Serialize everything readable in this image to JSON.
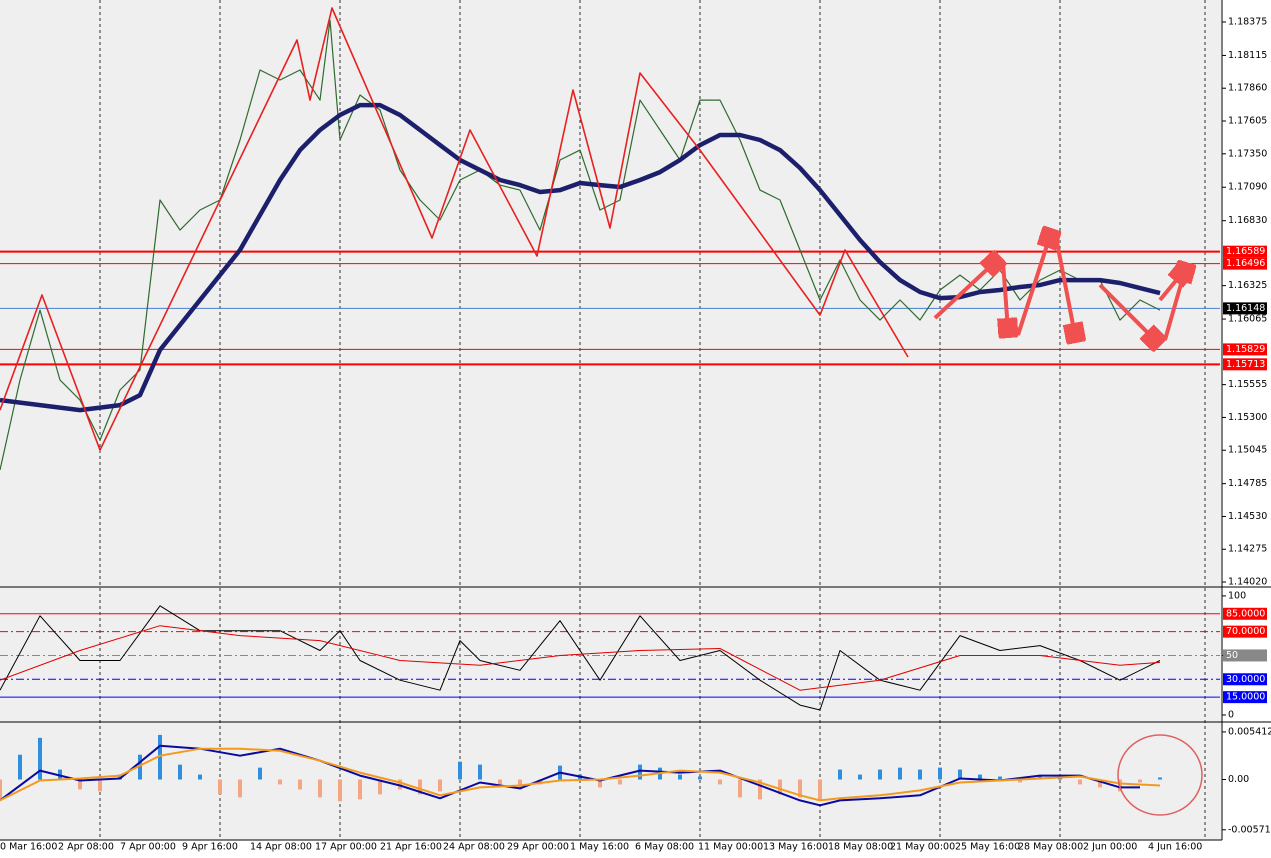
{
  "chart_data": [
    {
      "type": "line",
      "xlim": [
        0,
        244
      ],
      "ylim": [
        1.13997,
        1.18546
      ],
      "yticks": [
        1.18375,
        1.18115,
        {
          "value": 1.1786,
          "label": "1.17860"
        },
        1.17605,
        {
          "value": 1.1735,
          "label": "1.17350"
        },
        {
          "value": 1.1709,
          "label": "1.17090"
        },
        {
          "value": 1.1683,
          "label": "1.16830"
        },
        1.16325,
        1.16065,
        1.15555,
        {
          "value": 1.153,
          "label": "1.15300"
        },
        1.15045,
        1.14785,
        {
          "value": 1.1453,
          "label": "1.14530"
        },
        1.14275,
        {
          "value": 1.1402,
          "label": "1.14020"
        }
      ],
      "levels": [
        {
          "value": 1.16589,
          "color": "#ff0000",
          "width": 2
        },
        {
          "value": 1.16496,
          "color": "#ff0000",
          "width": 1
        },
        {
          "value": 1.16148,
          "color": "#4a7fd0",
          "width": 1,
          "label_bg": "#000000"
        },
        {
          "value": 1.15829,
          "color": "#ff0000",
          "width": 1
        },
        {
          "value": 1.15713,
          "color": "#ff0000",
          "width": 2
        }
      ],
      "series": [
        {
          "color": "#2f6b2f",
          "width": 1.2,
          "x": [
            0,
            4,
            8,
            12,
            16,
            20,
            24,
            28,
            32,
            36,
            40,
            44,
            48,
            52,
            56,
            60,
            64,
            66,
            68,
            72,
            76,
            80,
            84,
            88,
            92,
            96,
            100,
            104,
            108,
            112,
            116,
            120,
            124,
            128,
            132,
            136,
            140,
            144,
            148,
            152,
            156,
            160,
            164,
            168,
            172,
            176,
            180,
            184,
            188,
            192,
            196,
            200,
            204,
            208,
            212,
            216,
            220,
            224,
            228,
            232
          ],
          "values": [
            1.14891,
            1.15591,
            1.16135,
            1.15591,
            1.15435,
            1.15124,
            1.15513,
            1.15669,
            1.16991,
            1.16757,
            1.16913,
            1.16991,
            1.17457,
            1.18002,
            1.17924,
            1.18002,
            1.17768,
            1.1839,
            1.17457,
            1.17807,
            1.17691,
            1.17224,
            1.16991,
            1.16835,
            1.17146,
            1.17224,
            1.17107,
            1.17068,
            1.16757,
            1.17302,
            1.17379,
            1.16913,
            1.16991,
            1.17768,
            1.17535,
            1.17302,
            1.17768,
            1.17768,
            1.17457,
            1.17068,
            1.16991,
            1.16602,
            1.16213,
            1.16524,
            1.16213,
            1.16057,
            1.16213,
            1.16057,
            1.16291,
            1.16407,
            1.16291,
            1.16446,
            1.16213,
            1.16368,
            1.16446,
            1.16368,
            1.16368,
            1.16057,
            1.16213,
            1.16135
          ]
        },
        {
          "color": "#1c1f6b",
          "width": 4.5,
          "x": [
            0,
            8,
            16,
            24,
            28,
            32,
            40,
            48,
            56,
            60,
            64,
            68,
            72,
            76,
            80,
            84,
            88,
            92,
            96,
            100,
            104,
            108,
            112,
            116,
            120,
            124,
            128,
            132,
            136,
            140,
            144,
            148,
            152,
            156,
            160,
            164,
            168,
            172,
            176,
            180,
            184,
            188,
            192,
            196,
            200,
            204,
            208,
            212,
            216,
            220,
            224,
            228,
            232
          ],
          "values": [
            1.15435,
            1.15396,
            1.15357,
            1.15396,
            1.15474,
            1.15824,
            1.16213,
            1.16602,
            1.17146,
            1.17379,
            1.17535,
            1.17652,
            1.17729,
            1.17729,
            1.17652,
            1.17535,
            1.17418,
            1.17302,
            1.17224,
            1.17146,
            1.17107,
            1.17053,
            1.17068,
            1.17123,
            1.17107,
            1.17092,
            1.17146,
            1.17208,
            1.17302,
            1.17418,
            1.17496,
            1.17496,
            1.17457,
            1.17379,
            1.1724,
            1.17068,
            1.16874,
            1.1668,
            1.16508,
            1.16368,
            1.16275,
            1.16228,
            1.16236,
            1.16275,
            1.16291,
            1.16314,
            1.1633,
            1.16368,
            1.16368,
            1.16368,
            1.16345,
            1.16306,
            1.16267
          ]
        },
        {
          "color": "#e82020",
          "width": 1.6,
          "x": [
            0,
            8.4,
            20,
            59.4,
            62,
            66.4,
            86.4,
            94,
            107.4,
            114.6,
            122,
            128,
            140,
            164,
            169,
            181.6
          ],
          "values": [
            1.15357,
            1.16252,
            1.15046,
            1.18235,
            1.17768,
            1.18484,
            1.16695,
            1.17535,
            1.16555,
            1.17846,
            1.16773,
            1.17978,
            1.17379,
            1.16096,
            1.16602,
            1.1577
          ]
        }
      ]
    },
    {
      "type": "line",
      "xlim": [
        0,
        244
      ],
      "ylim": [
        -4.2,
        105.8
      ],
      "yticks": [
        100,
        50,
        0
      ],
      "levels": [
        {
          "value": 85,
          "label": "85.0000",
          "color": "#ff0000",
          "width": 1,
          "label_bg": "#ff0000"
        },
        {
          "value": 70,
          "label": "70.0000",
          "color": "#ff0000",
          "width": 1,
          "dash": true,
          "label_bg": "#ff0000"
        },
        {
          "value": 50,
          "color": "#888888",
          "width": 1,
          "dash": true
        },
        {
          "value": 30,
          "label": "30.0000",
          "color": "#0000ff",
          "width": 1,
          "dash": true,
          "label_bg": "#0000ff"
        },
        {
          "value": 15,
          "label": "15.0000",
          "color": "#0000ff",
          "width": 1,
          "label_bg": "#0000ff"
        }
      ],
      "series": [
        {
          "color": "#000000",
          "width": 1,
          "x": [
            0,
            8,
            16,
            24,
            32,
            40,
            48,
            56,
            64,
            68,
            72,
            80,
            88,
            92,
            96,
            104,
            112,
            120,
            128,
            136,
            144,
            152,
            160,
            164,
            168,
            176,
            184,
            192,
            200,
            208,
            216,
            224,
            232
          ],
          "values": [
            20.8,
            83.3,
            45.8,
            45.8,
            91.7,
            70.8,
            70.8,
            70.8,
            54.2,
            70.8,
            45.8,
            29.2,
            20.8,
            62.5,
            45.8,
            37.5,
            79.2,
            29.2,
            83.3,
            45.8,
            54.2,
            29.2,
            8.3,
            4.2,
            54.2,
            29.2,
            20.8,
            66.7,
            54.2,
            58.3,
            45.8,
            29.2,
            45.8
          ]
        },
        {
          "color": "#e00000",
          "width": 1,
          "x": [
            0,
            16,
            32,
            48,
            64,
            80,
            96,
            112,
            128,
            144,
            160,
            176,
            192,
            208,
            224,
            232
          ],
          "values": [
            29.2,
            54.2,
            75,
            66.7,
            62.5,
            45.8,
            41.7,
            50,
            54.2,
            55.8,
            20.8,
            29.2,
            50,
            50,
            41.7,
            44.2
          ]
        }
      ]
    },
    {
      "type": "bar",
      "xlim": [
        0,
        244
      ],
      "ylim": [
        -0.006652,
        0.006314
      ],
      "yticks": [
        0.0054121,
        {
          "value": 0,
          "label": "0.00"
        },
        -0.0057156
      ],
      "xticks": [
        {
          "value": 0,
          "label": "0 Mar 16:00"
        },
        {
          "value": 11.6,
          "label": "2 Apr 08:00"
        },
        {
          "value": 24,
          "label": "7 Apr 00:00"
        },
        {
          "value": 36.4,
          "label": "9 Apr 16:00"
        },
        {
          "value": 50,
          "label": "14 Apr 08:00"
        },
        {
          "value": 63,
          "label": "17 Apr 00:00"
        },
        {
          "value": 76,
          "label": "21 Apr 16:00"
        },
        {
          "value": 88.6,
          "label": "24 Apr 08:00"
        },
        {
          "value": 101.4,
          "label": "29 Apr 00:00"
        },
        {
          "value": 114,
          "label": "1 May 16:00"
        },
        {
          "value": 127,
          "label": "6 May 08:00"
        },
        {
          "value": 139.6,
          "label": "11 May 00:00"
        },
        {
          "value": 152.6,
          "label": "13 May 16:00"
        },
        {
          "value": 165.6,
          "label": "18 May 08:00"
        },
        {
          "value": 178,
          "label": "21 May 00:00"
        },
        {
          "value": 191,
          "label": "25 May 16:00"
        },
        {
          "value": 203.6,
          "label": "28 May 08:00"
        },
        {
          "value": 216.6,
          "label": "2 Jun 00:00"
        },
        {
          "value": 229.6,
          "label": "4 Jun 16:00"
        }
      ],
      "histogram": {
        "color": "#2e8fe0",
        "negative_color": "#f4a582",
        "x": [
          0,
          4,
          8,
          12,
          16,
          20,
          24,
          28,
          32,
          36,
          40,
          44,
          48,
          52,
          56,
          60,
          64,
          68,
          72,
          76,
          80,
          84,
          88,
          92,
          96,
          100,
          104,
          108,
          112,
          116,
          120,
          124,
          128,
          132,
          136,
          140,
          144,
          148,
          152,
          156,
          160,
          164,
          168,
          172,
          176,
          180,
          184,
          188,
          192,
          196,
          200,
          204,
          208,
          212,
          216,
          220,
          224,
          228,
          232
        ],
        "values": [
          -0.00226,
          0.00282,
          0.00474,
          0.00113,
          -0.00113,
          -0.00135,
          0.00056,
          0.00282,
          0.00507,
          0.00169,
          0.00056,
          -0.00169,
          -0.00203,
          0.00135,
          -0.00056,
          -0.00113,
          -0.00203,
          -0.00248,
          -0.00226,
          -0.00169,
          -0.00113,
          -0.00169,
          -0.00135,
          0.00203,
          0.00169,
          -0.00056,
          -0.00113,
          -0.00056,
          0.00158,
          0.00056,
          -0.0009,
          -0.00056,
          0.00169,
          0.00135,
          0.00056,
          0.00034,
          -0.00056,
          -0.00203,
          -0.00226,
          -0.00169,
          -0.00203,
          -0.00226,
          0.00113,
          0.00056,
          0.00113,
          0.00135,
          0.00113,
          0.00135,
          0.00113,
          0.00056,
          0.00034,
          -0.00034,
          0.00034,
          0.00056,
          -0.00056,
          -0.0009,
          -0.00135,
          -0.00034,
          0.00023
        ]
      },
      "series": [
        {
          "color": "#0a0aa0",
          "width": 2,
          "x": [
            0,
            8,
            16,
            24,
            32,
            40,
            48,
            56,
            64,
            72,
            80,
            88,
            96,
            104,
            112,
            120,
            128,
            136,
            144,
            152,
            160,
            164,
            168,
            176,
            184,
            192,
            200,
            208,
            216,
            224,
            228
          ],
          "values": [
            -0.00237,
            0.00101,
            -0.00011,
            0.00011,
            0.00383,
            0.0035,
            0.00271,
            0.0035,
            0.00214,
            0.00045,
            -0.00068,
            -0.00214,
            -0.00034,
            -0.00101,
            0.00079,
            -0.00011,
            0.00101,
            0.00079,
            0.00101,
            -0.00068,
            -0.00237,
            -0.00293,
            -0.00237,
            -0.00214,
            -0.0018,
            0.00011,
            -0.00011,
            0.00045,
            0.00045,
            -0.0009,
            -0.0009
          ]
        },
        {
          "color": "#f39a1e",
          "width": 2,
          "x": [
            0,
            8,
            16,
            24,
            32,
            40,
            48,
            56,
            64,
            72,
            80,
            88,
            96,
            104,
            112,
            120,
            128,
            136,
            144,
            152,
            160,
            164,
            168,
            176,
            184,
            192,
            200,
            208,
            216,
            224,
            232
          ],
          "values": [
            -0.00237,
            -0.00011,
            0.00011,
            0.00045,
            0.00271,
            0.0035,
            0.0035,
            0.00327,
            0.00214,
            0.00079,
            -0.00034,
            -0.0018,
            -0.0009,
            -0.00068,
            -0.00011,
            0,
            0.00045,
            0.00101,
            0.00079,
            -0.00034,
            -0.0018,
            -0.00237,
            -0.00214,
            -0.0018,
            -0.00124,
            -0.00034,
            -0.00011,
            0.00011,
            0.00034,
            -0.00045,
            -0.00068
          ]
        }
      ]
    }
  ]
}
